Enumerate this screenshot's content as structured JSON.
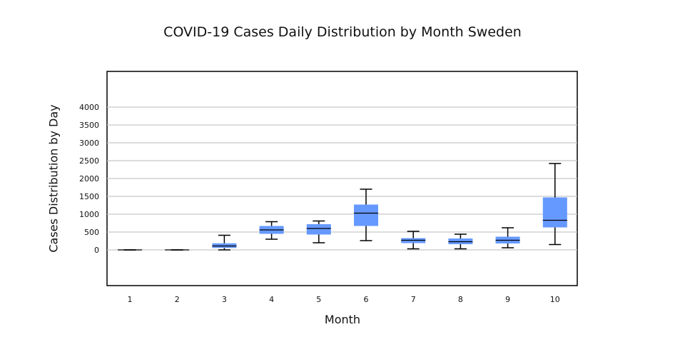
{
  "chart_data": {
    "type": "box",
    "title": "COVID-19 Cases Daily Distribution by Month Sweden",
    "xlabel": "Month",
    "ylabel": "Cases Distribution by Day",
    "categories": [
      "1",
      "2",
      "3",
      "4",
      "5",
      "6",
      "7",
      "8",
      "9",
      "10"
    ],
    "yticks": [
      0,
      500,
      1000,
      1500,
      2000,
      2500,
      3000,
      3500,
      4000
    ],
    "ylim": [
      -1000,
      5000
    ],
    "grid": true,
    "box_color": "#6699ff",
    "boxes": [
      {
        "category": "1",
        "min": 0,
        "q1": 0,
        "median": 0,
        "q3": 0,
        "max": 0
      },
      {
        "category": "2",
        "min": 0,
        "q1": 0,
        "median": 0,
        "q3": 0,
        "max": 0
      },
      {
        "category": "3",
        "min": 0,
        "q1": 55,
        "median": 110,
        "q3": 185,
        "max": 410
      },
      {
        "category": "4",
        "min": 300,
        "q1": 450,
        "median": 560,
        "q3": 670,
        "max": 790
      },
      {
        "category": "5",
        "min": 200,
        "q1": 430,
        "median": 600,
        "q3": 720,
        "max": 810
      },
      {
        "category": "6",
        "min": 260,
        "q1": 670,
        "median": 1030,
        "q3": 1270,
        "max": 1700
      },
      {
        "category": "7",
        "min": 30,
        "q1": 190,
        "median": 270,
        "q3": 330,
        "max": 520
      },
      {
        "category": "8",
        "min": 30,
        "q1": 160,
        "median": 230,
        "q3": 320,
        "max": 440
      },
      {
        "category": "9",
        "min": 60,
        "q1": 180,
        "median": 270,
        "q3": 370,
        "max": 620
      },
      {
        "category": "10",
        "min": 150,
        "q1": 630,
        "median": 830,
        "q3": 1470,
        "max": 2420
      }
    ]
  }
}
